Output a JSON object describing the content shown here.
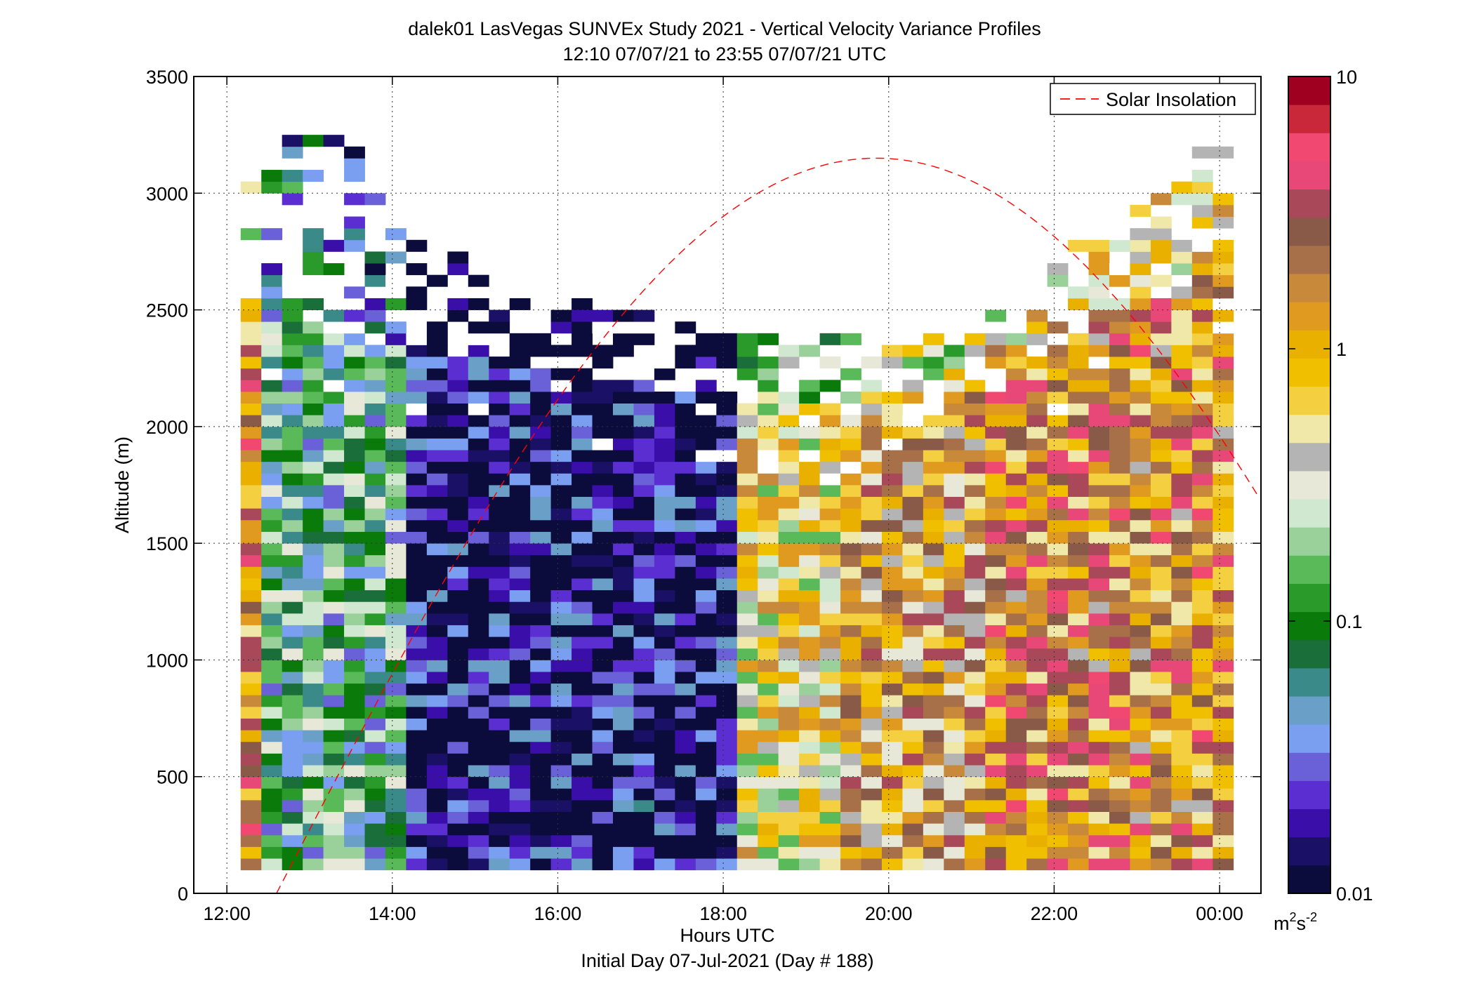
{
  "chart_data": {
    "type": "heatmap",
    "title": "dalek01 LasVegas SUNVEx Study 2021 - Vertical Velocity Variance Profiles",
    "subtitle": "12:10 07/07/21 to 23:55 07/07/21  UTC",
    "xlabel": "Hours UTC",
    "xlabel2": "Initial Day 07-Jul-2021 (Day # 188)",
    "ylabel": "Altitude (m)",
    "xlim_hours": [
      11.6,
      24.5
    ],
    "x_ticks": [
      {
        "v": 12,
        "label": "12:00"
      },
      {
        "v": 14,
        "label": "14:00"
      },
      {
        "v": 16,
        "label": "16:00"
      },
      {
        "v": 18,
        "label": "18:00"
      },
      {
        "v": 20,
        "label": "20:00"
      },
      {
        "v": 22,
        "label": "22:00"
      },
      {
        "v": 24,
        "label": "00:00"
      }
    ],
    "ylim": [
      0,
      3500
    ],
    "y_ticks": [
      0,
      500,
      1000,
      1500,
      2000,
      2500,
      3000,
      3500
    ],
    "grid": true,
    "legend": {
      "label": "Solar Insolation",
      "placement": "top-right",
      "color": "#ff0000",
      "style": "dashed"
    },
    "solar_insolation_curve": {
      "start_hour": 12.6,
      "peak_hour": 19.85,
      "peak_altitude": 3150,
      "zero_altitude": 0
    },
    "colorbar": {
      "scale": "log",
      "range": [
        0.01,
        10
      ],
      "ticks": [
        {
          "v": 0.01,
          "label": "0.01"
        },
        {
          "v": 0.1,
          "label": "0.1"
        },
        {
          "v": 1,
          "label": "1"
        },
        {
          "v": 10,
          "label": "10"
        }
      ],
      "units_base": "m",
      "units_sup1": "2",
      "units_mid": "s",
      "units_sup2": "-2",
      "colors": [
        "#0c0c3c",
        "#1a1066",
        "#3a0ea8",
        "#5a2ed0",
        "#6a60d8",
        "#7a9ef0",
        "#6aa0c8",
        "#3a8a8a",
        "#1a6e3a",
        "#0a7a0a",
        "#2a9a2a",
        "#5aba5a",
        "#9ad09a",
        "#cfe8cf",
        "#e8e8d8",
        "#b4b4b4",
        "#f0e8a8",
        "#f4d040",
        "#f0c000",
        "#eab000",
        "#e09a20",
        "#c88a3a",
        "#a87048",
        "#8a5a48",
        "#a84858",
        "#e84878",
        "#f04870",
        "#c8283a",
        "#a00020"
      ]
    },
    "time_range_hours": [
      12.1667,
      23.9167
    ],
    "data_series_resolution": {
      "time_step_min": 15,
      "altitude_step_m": 50
    },
    "value_pattern_by_hour": [
      {
        "hour_from": 12.2,
        "hour_to": 14.0,
        "typical_variance": 0.1,
        "description_level": "green-blue mix"
      },
      {
        "hour_from": 14.0,
        "hour_to": 18.0,
        "typical_variance": 0.015,
        "description_level": "dark navy/purple"
      },
      {
        "hour_from": 18.0,
        "hour_to": 19.2,
        "typical_variance": 0.5,
        "description_level": "yellow-orange"
      },
      {
        "hour_from": 19.2,
        "hour_to": 21.0,
        "typical_variance": 1.0,
        "description_level": "orange-brown"
      },
      {
        "hour_from": 21.0,
        "hour_to": 24.0,
        "typical_variance": 1.5,
        "description_level": "orange-brown-pink"
      }
    ],
    "top_boundary_altitude_by_hour": [
      {
        "hour": 12.25,
        "alt": 3050
      },
      {
        "hour": 12.75,
        "alt": 3250
      },
      {
        "hour": 13.25,
        "alt": 3250
      },
      {
        "hour": 13.75,
        "alt": 3050
      },
      {
        "hour": 14.25,
        "alt": 2750
      },
      {
        "hour": 14.75,
        "alt": 2700
      },
      {
        "hour": 15.25,
        "alt": 2550
      },
      {
        "hour": 15.75,
        "alt": 2550
      },
      {
        "hour": 16.25,
        "alt": 2500
      },
      {
        "hour": 16.75,
        "alt": 2500
      },
      {
        "hour": 17.25,
        "alt": 2500
      },
      {
        "hour": 17.75,
        "alt": 2400
      },
      {
        "hour": 18.25,
        "alt": 2400
      },
      {
        "hour": 18.75,
        "alt": 2400
      },
      {
        "hour": 19.25,
        "alt": 2400
      },
      {
        "hour": 19.75,
        "alt": 2400
      },
      {
        "hour": 20.25,
        "alt": 2400
      },
      {
        "hour": 20.75,
        "alt": 2300
      },
      {
        "hour": 21.25,
        "alt": 2500
      },
      {
        "hour": 21.75,
        "alt": 2600
      },
      {
        "hour": 22.25,
        "alt": 2800
      },
      {
        "hour": 22.75,
        "alt": 2900
      },
      {
        "hour": 23.25,
        "alt": 3000
      },
      {
        "hour": 23.75,
        "alt": 3200
      }
    ],
    "well_mixed_top_by_hour": [
      {
        "hour": 12.25,
        "alt": 2500
      },
      {
        "hour": 14.0,
        "alt": 2300
      },
      {
        "hour": 16.0,
        "alt": 2200
      },
      {
        "hour": 18.0,
        "alt": 2100
      },
      {
        "hour": 20.0,
        "alt": 2000
      },
      {
        "hour": 21.0,
        "alt": 2150
      },
      {
        "hour": 22.0,
        "alt": 2350
      },
      {
        "hour": 23.0,
        "alt": 2500
      },
      {
        "hour": 24.0,
        "alt": 2700
      }
    ]
  }
}
